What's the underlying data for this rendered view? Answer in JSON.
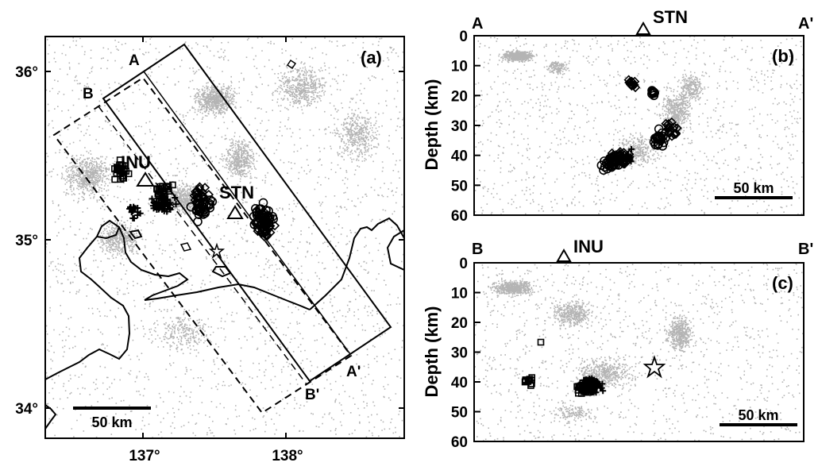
{
  "map": {
    "panel_label": "(a)",
    "lat_labels": [
      "36°",
      "35°",
      "34°"
    ],
    "lon_labels": [
      "137°",
      "138°"
    ],
    "profile_a_start": "A",
    "profile_a_end": "A'",
    "profile_b_start": "B",
    "profile_b_end": "B'",
    "station_inu": "INU",
    "station_stn": "STN",
    "scale_label": "50 km"
  },
  "section_b": {
    "panel_label": "(b)",
    "start_label": "A",
    "end_label": "A'",
    "station": "STN",
    "ylabel": "Depth (km)",
    "yticks": [
      "0",
      "10",
      "20",
      "30",
      "40",
      "50",
      "60"
    ],
    "scale_label": "50 km"
  },
  "section_c": {
    "panel_label": "(c)",
    "start_label": "B",
    "end_label": "B'",
    "station": "INU",
    "ylabel": "Depth (km)",
    "yticks": [
      "0",
      "10",
      "20",
      "30",
      "40",
      "50",
      "60"
    ],
    "scale_label": "50 km"
  },
  "colors": {
    "background_seismicity": "#b4b4b4",
    "ink": "#000000"
  }
}
